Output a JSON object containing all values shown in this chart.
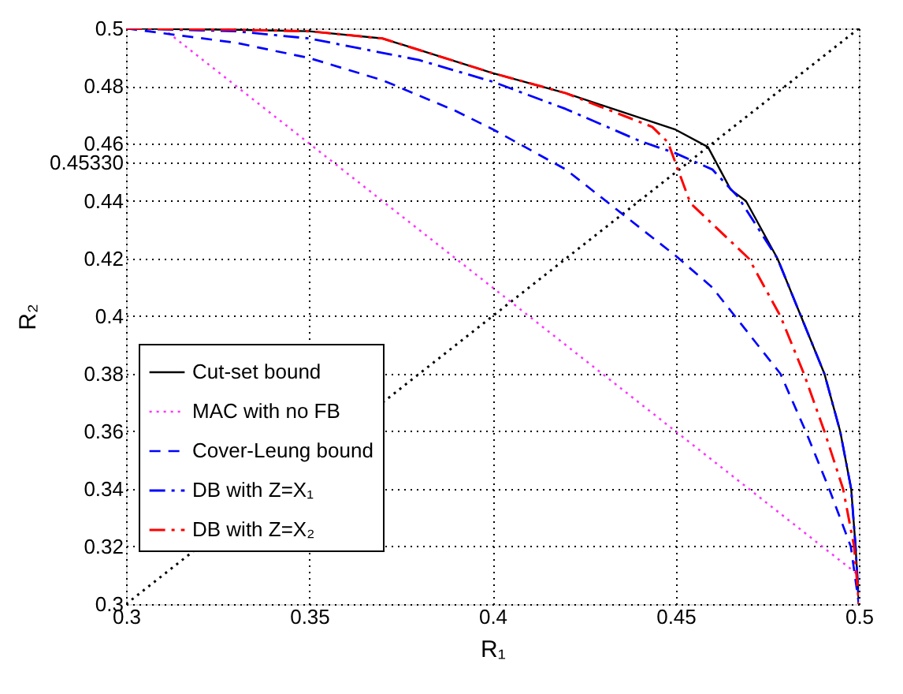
{
  "chart_data": {
    "type": "line",
    "xlabel": "R₁",
    "ylabel": "R₂",
    "xlim": [
      0.3,
      0.5
    ],
    "ylim": [
      0.3,
      0.5
    ],
    "xticks": [
      0.3,
      0.35,
      0.4,
      0.45,
      0.5
    ],
    "yticks": [
      0.3,
      0.32,
      0.34,
      0.36,
      0.38,
      0.4,
      0.42,
      0.44,
      {
        "value": 0.4533,
        "label": "0.45330"
      },
      0.46,
      0.48,
      0.5
    ],
    "grid": true,
    "legend": "left",
    "marker": "none",
    "series": [
      {
        "name": "Cut-set bound",
        "color": "#000000",
        "line_style": "solid",
        "x": [
          0.3,
          0.33,
          0.35,
          0.37,
          0.4,
          0.42,
          0.45,
          0.4588,
          0.465,
          0.4692,
          0.4778,
          0.4842,
          0.4906,
          0.4949,
          0.4979,
          0.4991,
          0.5
        ],
        "values": [
          0.5,
          0.4995,
          0.499,
          0.4965,
          0.4845,
          0.4775,
          0.4648,
          0.4588,
          0.444,
          0.44,
          0.42,
          0.4,
          0.38,
          0.36,
          0.34,
          0.32,
          0.3
        ]
      },
      {
        "name": "MAC with no FB",
        "color": "#ff33ff",
        "line_style": "dotted",
        "x": [
          0.31,
          0.5
        ],
        "values": [
          0.5,
          0.31
        ]
      },
      {
        "name": "Cover-Leung bound",
        "color": "#0000ff",
        "line_style": "dashed",
        "x": [
          0.3,
          0.33,
          0.35,
          0.37,
          0.39,
          0.4,
          0.42,
          0.44,
          0.45,
          0.46,
          0.4662,
          0.4786,
          0.4855,
          0.4919,
          0.4978,
          0.5
        ],
        "values": [
          0.5,
          0.495,
          0.4897,
          0.482,
          0.4713,
          0.465,
          0.451,
          0.431,
          0.421,
          0.41,
          0.4,
          0.38,
          0.36,
          0.34,
          0.32,
          0.3
        ]
      },
      {
        "name": "DB with Z=X₁",
        "color": "#0000ff",
        "line_style": "dashdot",
        "x": [
          0.3,
          0.33,
          0.35,
          0.38,
          0.4,
          0.42,
          0.44,
          0.45,
          0.46,
          0.467,
          0.4778,
          0.4842,
          0.4906,
          0.4949,
          0.4979,
          0.4991,
          0.5
        ],
        "values": [
          0.5,
          0.499,
          0.4965,
          0.489,
          0.4815,
          0.472,
          0.461,
          0.4566,
          0.451,
          0.4415,
          0.42,
          0.4,
          0.38,
          0.36,
          0.34,
          0.32,
          0.3
        ]
      },
      {
        "name": "DB with Z=X₂",
        "color": "#ff0000",
        "line_style": "dashdot",
        "x": [
          0.3,
          0.33,
          0.35,
          0.37,
          0.4,
          0.42,
          0.4436,
          0.4479,
          0.454,
          0.47,
          0.4786,
          0.485,
          0.4906,
          0.4957,
          0.4987,
          0.5
        ],
        "values": [
          0.5,
          0.4995,
          0.499,
          0.4965,
          0.4845,
          0.4775,
          0.4658,
          0.4604,
          0.4393,
          0.42,
          0.4,
          0.38,
          0.36,
          0.34,
          0.32,
          0.3
        ]
      },
      {
        "color": "#000000",
        "line_style": "dotted",
        "x": [
          0.3,
          0.5
        ],
        "values": [
          0.3,
          0.5
        ]
      }
    ]
  }
}
